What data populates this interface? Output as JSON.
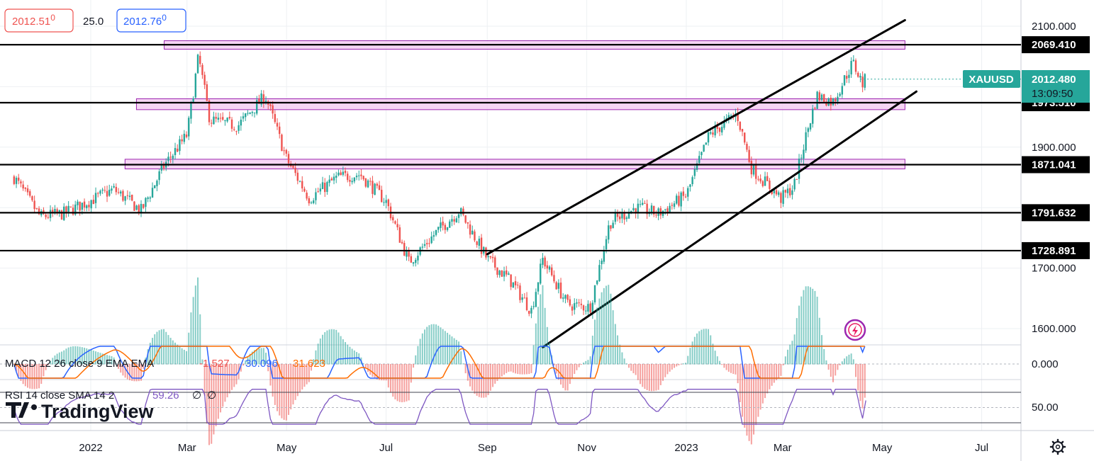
{
  "header": {
    "bid": "2012.51",
    "bid_sup": "0",
    "spread": "25.0",
    "ask": "2012.76",
    "ask_sup": "0"
  },
  "symbol": {
    "name": "XAUUSD",
    "last_price": "2012.480",
    "countdown": "13:09:50"
  },
  "brand": {
    "name": "TradingView"
  },
  "colors": {
    "up": "#26a69a",
    "down": "#ef5350",
    "zone_fill": "#f3c8f0",
    "zone_stroke": "#9c27b0",
    "macd_line": "#2962ff",
    "signal_line": "#ff6d00",
    "rsi_line": "#7e57c2",
    "symbol_tag": "#26a69a"
  },
  "chart_data": [
    {
      "type": "candlestick",
      "series": "XAUUSD",
      "x_tick_labels": [
        "2022",
        "Mar",
        "May",
        "Jul",
        "Sep",
        "Nov",
        "2023",
        "Mar",
        "May",
        "Jul"
      ],
      "y_tick_labels": [
        "2100.000",
        "1900.000",
        "1700.000",
        "1600.000"
      ],
      "ylim": [
        1555,
        2120
      ],
      "grid": true,
      "path_points": [
        [
          "2021-11-15",
          1850
        ],
        [
          "2021-12-01",
          1785
        ],
        [
          "2021-12-15",
          1790
        ],
        [
          "2022-01-01",
          1812
        ],
        [
          "2022-01-15",
          1830
        ],
        [
          "2022-02-01",
          1795
        ],
        [
          "2022-02-15",
          1870
        ],
        [
          "2022-03-01",
          1920
        ],
        [
          "2022-03-08",
          2050
        ],
        [
          "2022-03-15",
          1945
        ],
        [
          "2022-04-01",
          1935
        ],
        [
          "2022-04-18",
          1985
        ],
        [
          "2022-05-01",
          1880
        ],
        [
          "2022-05-15",
          1815
        ],
        [
          "2022-06-01",
          1850
        ],
        [
          "2022-06-15",
          1855
        ],
        [
          "2022-07-01",
          1810
        ],
        [
          "2022-07-15",
          1710
        ],
        [
          "2022-08-01",
          1760
        ],
        [
          "2022-08-15",
          1795
        ],
        [
          "2022-09-01",
          1715
        ],
        [
          "2022-09-15",
          1680
        ],
        [
          "2022-09-28",
          1630
        ],
        [
          "2022-10-05",
          1715
        ],
        [
          "2022-10-20",
          1640
        ],
        [
          "2022-11-03",
          1635
        ],
        [
          "2022-11-15",
          1775
        ],
        [
          "2022-12-01",
          1800
        ],
        [
          "2022-12-15",
          1790
        ],
        [
          "2023-01-01",
          1820
        ],
        [
          "2023-01-15",
          1920
        ],
        [
          "2023-02-01",
          1955
        ],
        [
          "2023-02-10",
          1865
        ],
        [
          "2023-02-28",
          1815
        ],
        [
          "2023-03-08",
          1835
        ],
        [
          "2023-03-15",
          1915
        ],
        [
          "2023-03-22",
          1985
        ],
        [
          "2023-04-01",
          1975
        ],
        [
          "2023-04-13",
          2040
        ],
        [
          "2023-04-19",
          2005
        ],
        [
          "2023-04-21",
          2012.48
        ]
      ],
      "horizontal_levels": [
        {
          "value": 2069.41,
          "label": "2069.410"
        },
        {
          "value": 1973.51,
          "label": "1973.510"
        },
        {
          "value": 1871.041,
          "label": "1871.041"
        },
        {
          "value": 1791.632,
          "label": "1791.632"
        },
        {
          "value": 1728.891,
          "label": "1728.891"
        }
      ],
      "zones": [
        {
          "from": "2022-02-15",
          "to": "2023-05-15",
          "low": 2062,
          "high": 2076
        },
        {
          "from": "2022-01-29",
          "to": "2023-05-15",
          "low": 1962,
          "high": 1980
        },
        {
          "from": "2022-01-22",
          "to": "2023-05-15",
          "low": 1864,
          "high": 1880
        }
      ],
      "trend_channel": [
        {
          "from": [
            "2022-09-01",
            1723
          ],
          "to": [
            "2023-05-15",
            2110
          ]
        },
        {
          "from": [
            "2022-10-05",
            1569
          ],
          "to": [
            "2023-05-22",
            1992
          ]
        }
      ]
    },
    {
      "type": "line",
      "title": "MACD 12 26 close 9 EMA EMA",
      "values_text": [
        "-1.527",
        "30.096",
        "31.623"
      ],
      "y_tick_labels": [
        "0.000"
      ]
    },
    {
      "type": "line",
      "title": "RSI 14 close SMA 14 2",
      "values_text": [
        "59.26",
        "∅",
        "∅"
      ],
      "y_tick_labels": [
        "50.00"
      ],
      "bands": [
        70,
        30
      ],
      "current": 59.26
    }
  ]
}
